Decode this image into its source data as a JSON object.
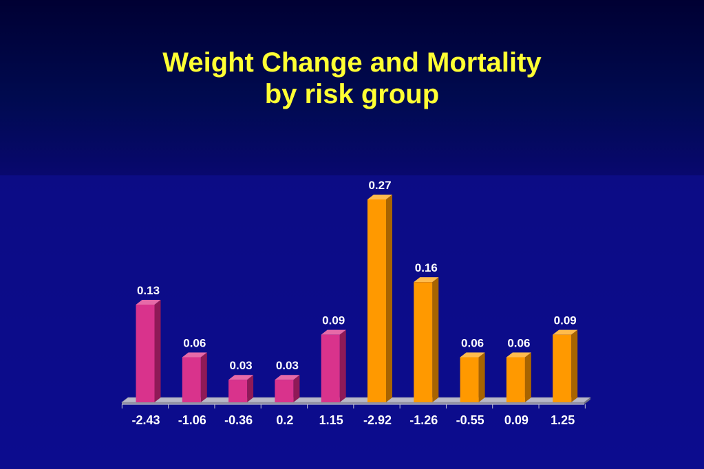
{
  "title": {
    "line1": "Weight Change and Mortality",
    "line2": "by risk group"
  },
  "colors": {
    "title": "#ffff33",
    "group1_front": "#d9338c",
    "group1_top": "#e66aa8",
    "group1_side": "#8f1a57",
    "group2_front": "#ff9900",
    "group2_top": "#ffbb4d",
    "group2_side": "#a86400",
    "labels": "#ffffff"
  },
  "chart_data": {
    "type": "bar",
    "categories": [
      "-2.43",
      "-1.06",
      "-0.36",
      "0.2",
      "1.15",
      "-2.92",
      "-1.26",
      "-0.55",
      "0.09",
      "1.25"
    ],
    "values": [
      0.13,
      0.06,
      0.03,
      0.03,
      0.09,
      0.27,
      0.16,
      0.06,
      0.06,
      0.09
    ],
    "value_labels": [
      "0.13",
      "0.06",
      "0.03",
      "0.03",
      "0.09",
      "0.27",
      "0.16",
      "0.06",
      "0.06",
      "0.09"
    ],
    "groups": [
      0,
      0,
      0,
      0,
      0,
      1,
      1,
      1,
      1,
      1
    ],
    "title": "Weight Change and Mortality by risk group",
    "xlabel": "",
    "ylabel": "",
    "ylim": [
      0,
      0.27
    ],
    "grid": false,
    "legend": "none",
    "style": "3d"
  }
}
